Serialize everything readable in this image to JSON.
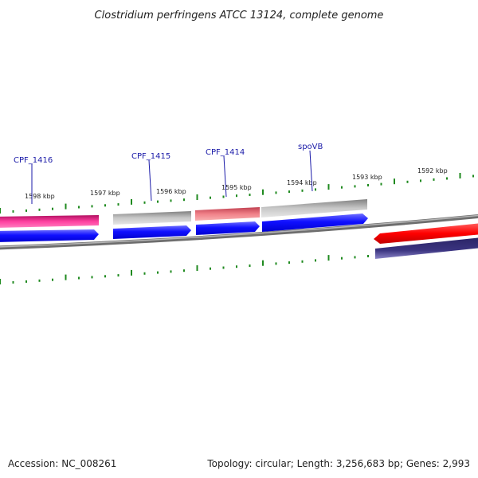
{
  "title": "Clostridium perfringens ATCC 13124, complete genome",
  "footer": {
    "accession": "Accession: NC_008261",
    "summary": "Topology: circular; Length: 3,256,683 bp; Genes: 2,993"
  },
  "ruler_labels": [
    "1598 kbp",
    "1597 kbp",
    "1596 kbp",
    "1595 kbp",
    "1594 kbp",
    "1593 kbp",
    "1592 kbp"
  ],
  "gene_labels": [
    "CPF_1416",
    "CPF_1415",
    "CPF_1414",
    "spoVB"
  ],
  "colors": {
    "gene_blue": "#1a1aff",
    "gene_pink": "#ff3399",
    "gene_gray": "#bfbfbf",
    "gene_salmon": "#f08080",
    "gene_red": "#ff0000",
    "gene_purple": "#3b3480",
    "tick_green": "#1f8a1f",
    "label_blue": "#1a1aa8",
    "backbone": "#808080"
  }
}
